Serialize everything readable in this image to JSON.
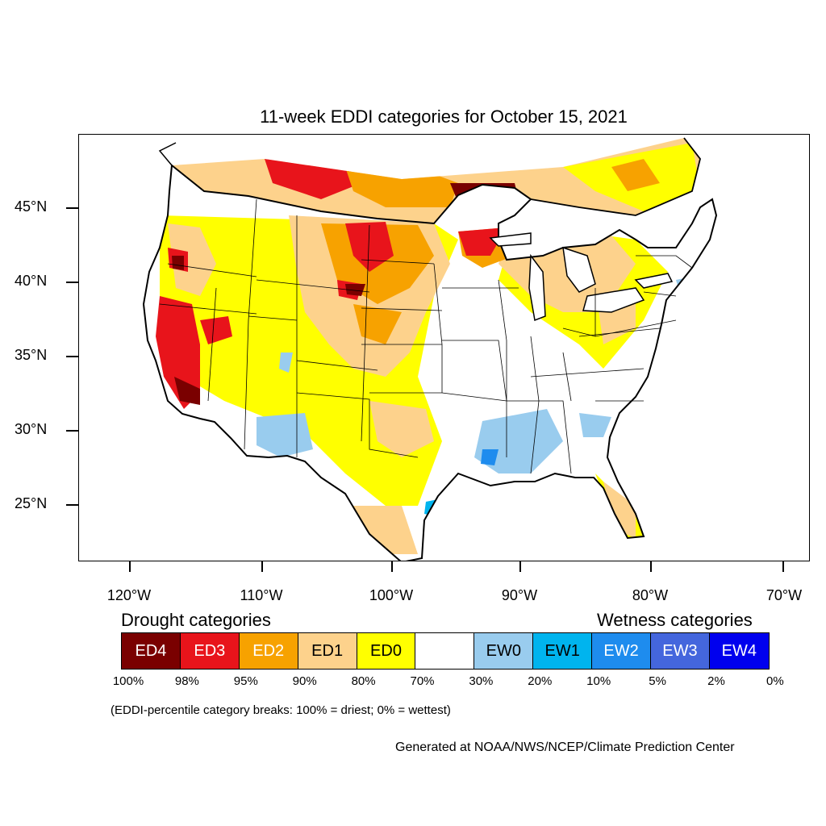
{
  "title": "11-week EDDI categories for October 15, 2021",
  "map": {
    "projection": "conic",
    "region": "Contiguous United States",
    "lat_labels": [
      "45°N",
      "40°N",
      "35°N",
      "30°N",
      "25°N"
    ],
    "lon_labels": [
      "120°W",
      "110°W",
      "100°W",
      "90°W",
      "80°W",
      "70°W"
    ]
  },
  "legend": {
    "drought_heading": "Drought categories",
    "wetness_heading": "Wetness categories",
    "categories": [
      {
        "label": "ED4",
        "color": "#7a0000",
        "text_color": "#ffffff"
      },
      {
        "label": "ED3",
        "color": "#e8141b",
        "text_color": "#ffffff"
      },
      {
        "label": "ED2",
        "color": "#f7a200",
        "text_color": "#ffffff"
      },
      {
        "label": "ED1",
        "color": "#fdd28c",
        "text_color": "#000000"
      },
      {
        "label": "ED0",
        "color": "#ffff00",
        "text_color": "#000000"
      },
      {
        "label": "",
        "color": "#ffffff",
        "text_color": "#000000"
      },
      {
        "label": "EW0",
        "color": "#99ccee",
        "text_color": "#000000"
      },
      {
        "label": "EW1",
        "color": "#00b4ee",
        "text_color": "#000000"
      },
      {
        "label": "EW2",
        "color": "#1e8cee",
        "text_color": "#ffffff"
      },
      {
        "label": "EW3",
        "color": "#4466dd",
        "text_color": "#ffffff"
      },
      {
        "label": "EW4",
        "color": "#0000ee",
        "text_color": "#ffffff"
      }
    ],
    "breaks": [
      "100%",
      "98%",
      "95%",
      "90%",
      "80%",
      "70%",
      "30%",
      "20%",
      "10%",
      "5%",
      "2%",
      "0%"
    ],
    "note": "(EDDI-percentile category breaks: 100% = driest; 0% = wettest)"
  },
  "credit": "Generated at NOAA/NWS/NCEP/Climate Prediction Center"
}
